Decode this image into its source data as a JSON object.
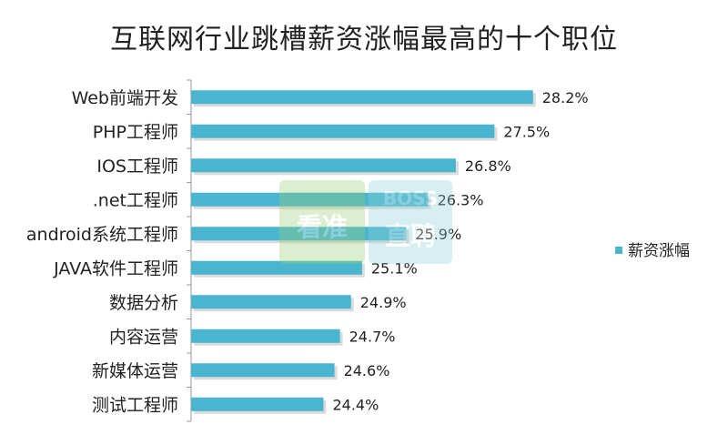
{
  "chart_data": {
    "type": "bar",
    "orientation": "horizontal",
    "title": "互联网行业跳槽薪资涨幅最高的十个职位",
    "categories": [
      "Web前端开发",
      "PHP工程师",
      "IOS工程师",
      ".net工程师",
      "android系统工程师",
      "JAVA软件工程师",
      "数据分析",
      "内容运营",
      "新媒体运营",
      "测试工程师"
    ],
    "series": [
      {
        "name": "薪资涨幅",
        "values": [
          28.2,
          27.5,
          26.8,
          26.3,
          25.9,
          25.1,
          24.9,
          24.7,
          24.6,
          24.4
        ],
        "labels": [
          "28.2%",
          "27.5%",
          "26.8%",
          "26.3%",
          "25.9%",
          "25.1%",
          "24.9%",
          "24.7%",
          "24.6%",
          "24.4%"
        ],
        "color": "#4ab5cf"
      }
    ],
    "xlim": [
      22,
      28.6
    ],
    "grid": false,
    "legend_position": "right"
  },
  "watermark": {
    "left_text": "看准",
    "right_top": "BOSS",
    "right_bottom": "直聘"
  }
}
